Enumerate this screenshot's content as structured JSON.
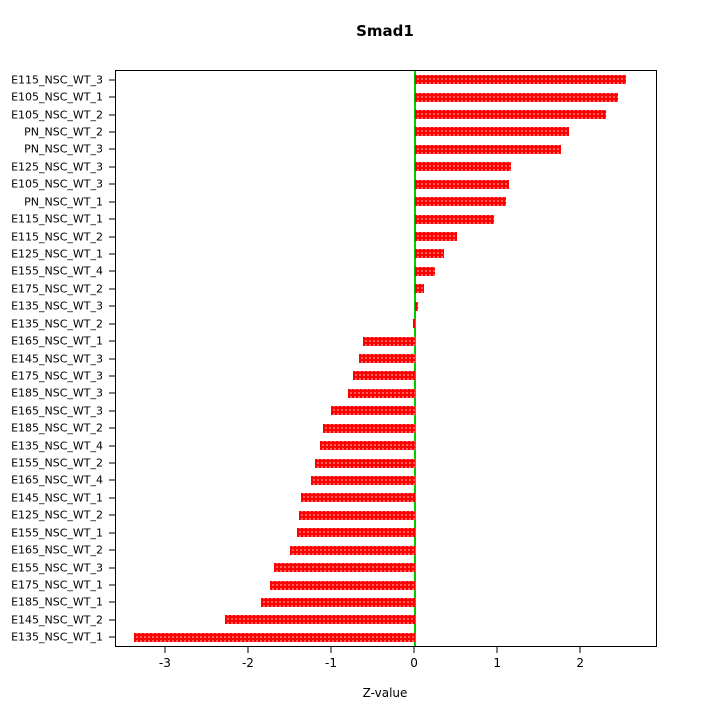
{
  "chart_data": {
    "type": "bar",
    "orientation": "horizontal",
    "title": "Smad1",
    "xlabel": "Z-value",
    "ylabel": "",
    "xlim": [
      -3.6,
      2.9
    ],
    "x_ticks": [
      -3,
      -2,
      -1,
      0,
      1,
      2
    ],
    "grid": false,
    "legend_position": "none",
    "bar_color": "#ff0000",
    "zero_line_color": "#00cc00",
    "axis_color": "#000000",
    "categories": [
      "E115_NSC_WT_3",
      "E105_NSC_WT_1",
      "E105_NSC_WT_2",
      "PN_NSC_WT_2",
      "PN_NSC_WT_3",
      "E125_NSC_WT_3",
      "E105_NSC_WT_3",
      "PN_NSC_WT_1",
      "E115_NSC_WT_1",
      "E115_NSC_WT_2",
      "E125_NSC_WT_1",
      "E155_NSC_WT_4",
      "E175_NSC_WT_2",
      "E135_NSC_WT_3",
      "E135_NSC_WT_2",
      "E165_NSC_WT_1",
      "E145_NSC_WT_3",
      "E175_NSC_WT_3",
      "E185_NSC_WT_3",
      "E165_NSC_WT_3",
      "E185_NSC_WT_2",
      "E135_NSC_WT_4",
      "E155_NSC_WT_2",
      "E165_NSC_WT_4",
      "E145_NSC_WT_1",
      "E125_NSC_WT_2",
      "E155_NSC_WT_1",
      "E165_NSC_WT_2",
      "E155_NSC_WT_3",
      "E175_NSC_WT_1",
      "E185_NSC_WT_1",
      "E145_NSC_WT_2",
      "E135_NSC_WT_1"
    ],
    "values": [
      2.54,
      2.44,
      2.3,
      1.85,
      1.76,
      1.15,
      1.13,
      1.1,
      0.95,
      0.51,
      0.35,
      0.24,
      0.11,
      0.03,
      -0.03,
      -0.63,
      -0.68,
      -0.75,
      -0.81,
      -1.01,
      -1.11,
      -1.15,
      -1.21,
      -1.25,
      -1.37,
      -1.4,
      -1.42,
      -1.51,
      -1.7,
      -1.75,
      -1.85,
      -2.29,
      -3.38
    ]
  }
}
